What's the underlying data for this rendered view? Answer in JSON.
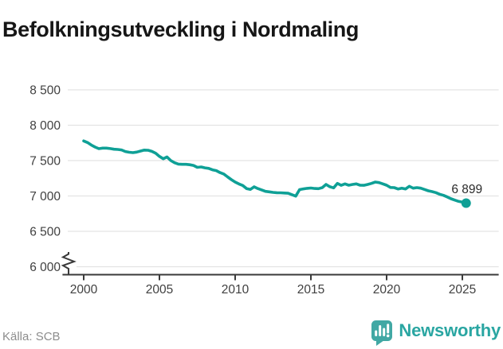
{
  "title": "Befolkningsutveckling i Nordmaling",
  "footer": {
    "source": "Källa: SCB",
    "brand": "Newsworthy"
  },
  "colors": {
    "line": "#0fa096",
    "brand_badge": "#41a8a4",
    "brand_text": "#2aa6a2",
    "grid": "#e3e3e3",
    "axis": "#3a3a3a",
    "tick_text": "#404040",
    "label_text": "#2b2b2b"
  },
  "chart_data": {
    "type": "line",
    "title": "Befolkningsutveckling i Nordmaling",
    "source": "Källa: SCB",
    "grid": "horizontal",
    "legend": "none",
    "line_color": "#0fa096",
    "end_label": "6 899",
    "end_value": 6899,
    "axis_break_at_bottom": true,
    "xlim": [
      1998.6,
      2027.4
    ],
    "ylim": [
      6000,
      8500
    ],
    "x_ticks": [
      {
        "value": 2000,
        "label": "2000"
      },
      {
        "value": 2005,
        "label": "2005"
      },
      {
        "value": 2010,
        "label": "2010"
      },
      {
        "value": 2015,
        "label": "2015"
      },
      {
        "value": 2020,
        "label": "2020"
      },
      {
        "value": 2025,
        "label": "2025"
      }
    ],
    "y_ticks": [
      {
        "value": 8500,
        "label": "8 500"
      },
      {
        "value": 8000,
        "label": "8 000"
      },
      {
        "value": 7500,
        "label": "7 500"
      },
      {
        "value": 7000,
        "label": "7 000"
      },
      {
        "value": 6500,
        "label": "6 500"
      },
      {
        "value": 6000,
        "label": "6 000"
      }
    ],
    "series": [
      {
        "points": [
          [
            2000.0,
            7778
          ],
          [
            2000.25,
            7755
          ],
          [
            2000.5,
            7720
          ],
          [
            2000.75,
            7691
          ],
          [
            2001.0,
            7668
          ],
          [
            2001.25,
            7676
          ],
          [
            2001.5,
            7676
          ],
          [
            2001.75,
            7670
          ],
          [
            2002.0,
            7661
          ],
          [
            2002.25,
            7657
          ],
          [
            2002.5,
            7650
          ],
          [
            2002.75,
            7628
          ],
          [
            2003.0,
            7618
          ],
          [
            2003.25,
            7612
          ],
          [
            2003.5,
            7620
          ],
          [
            2003.75,
            7635
          ],
          [
            2004.0,
            7648
          ],
          [
            2004.25,
            7646
          ],
          [
            2004.5,
            7630
          ],
          [
            2004.75,
            7604
          ],
          [
            2005.0,
            7560
          ],
          [
            2005.25,
            7526
          ],
          [
            2005.5,
            7552
          ],
          [
            2005.75,
            7500
          ],
          [
            2006.0,
            7470
          ],
          [
            2006.25,
            7450
          ],
          [
            2006.5,
            7447
          ],
          [
            2006.75,
            7447
          ],
          [
            2007.0,
            7442
          ],
          [
            2007.25,
            7432
          ],
          [
            2007.5,
            7405
          ],
          [
            2007.75,
            7410
          ],
          [
            2008.0,
            7398
          ],
          [
            2008.25,
            7390
          ],
          [
            2008.5,
            7370
          ],
          [
            2008.75,
            7358
          ],
          [
            2009.0,
            7330
          ],
          [
            2009.25,
            7310
          ],
          [
            2009.5,
            7270
          ],
          [
            2009.75,
            7230
          ],
          [
            2010.0,
            7197
          ],
          [
            2010.25,
            7170
          ],
          [
            2010.5,
            7148
          ],
          [
            2010.75,
            7105
          ],
          [
            2011.0,
            7092
          ],
          [
            2011.25,
            7129
          ],
          [
            2011.5,
            7105
          ],
          [
            2011.75,
            7085
          ],
          [
            2012.0,
            7065
          ],
          [
            2012.25,
            7058
          ],
          [
            2012.5,
            7050
          ],
          [
            2012.75,
            7046
          ],
          [
            2013.0,
            7045
          ],
          [
            2013.25,
            7042
          ],
          [
            2013.5,
            7038
          ],
          [
            2013.75,
            7018
          ],
          [
            2014.0,
            6998
          ],
          [
            2014.25,
            7090
          ],
          [
            2014.5,
            7100
          ],
          [
            2014.75,
            7108
          ],
          [
            2015.0,
            7112
          ],
          [
            2015.25,
            7106
          ],
          [
            2015.5,
            7103
          ],
          [
            2015.75,
            7118
          ],
          [
            2016.0,
            7163
          ],
          [
            2016.25,
            7130
          ],
          [
            2016.5,
            7115
          ],
          [
            2016.75,
            7178
          ],
          [
            2017.0,
            7150
          ],
          [
            2017.25,
            7171
          ],
          [
            2017.5,
            7152
          ],
          [
            2017.75,
            7163
          ],
          [
            2018.0,
            7171
          ],
          [
            2018.25,
            7152
          ],
          [
            2018.5,
            7150
          ],
          [
            2018.75,
            7163
          ],
          [
            2019.0,
            7178
          ],
          [
            2019.25,
            7197
          ],
          [
            2019.5,
            7189
          ],
          [
            2019.75,
            7171
          ],
          [
            2020.0,
            7152
          ],
          [
            2020.25,
            7120
          ],
          [
            2020.5,
            7118
          ],
          [
            2020.75,
            7099
          ],
          [
            2021.0,
            7110
          ],
          [
            2021.25,
            7099
          ],
          [
            2021.5,
            7137
          ],
          [
            2021.75,
            7110
          ],
          [
            2022.0,
            7118
          ],
          [
            2022.25,
            7110
          ],
          [
            2022.5,
            7092
          ],
          [
            2022.75,
            7073
          ],
          [
            2023.0,
            7062
          ],
          [
            2023.25,
            7047
          ],
          [
            2023.5,
            7025
          ],
          [
            2023.75,
            7009
          ],
          [
            2024.0,
            6987
          ],
          [
            2024.25,
            6961
          ],
          [
            2024.5,
            6942
          ],
          [
            2024.75,
            6924
          ],
          [
            2025.0,
            6912
          ],
          [
            2025.25,
            6899
          ]
        ]
      }
    ]
  }
}
